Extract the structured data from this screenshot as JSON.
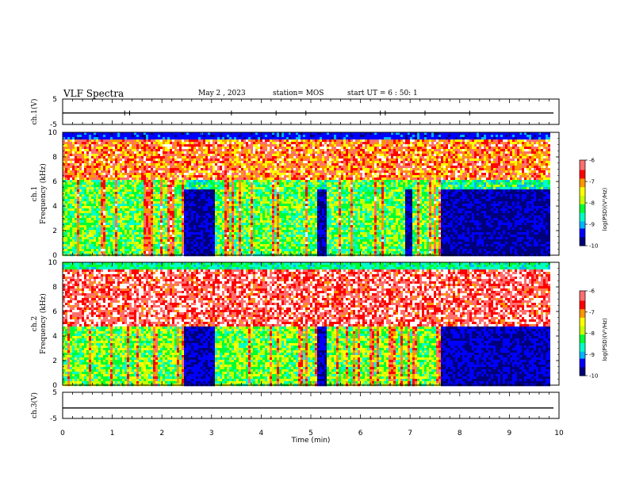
{
  "header": {
    "title": "VLF Spectra",
    "date": "May 2 , 2023",
    "station": "station= MOS",
    "start": "start UT = 6 : 50: 1"
  },
  "chart_data": [
    {
      "type": "line",
      "name": "ch1-voltage",
      "ylabel": "ch.1(V)",
      "ylim": [
        -5,
        5
      ],
      "yticks": [
        "5",
        "-5"
      ],
      "x": [
        0,
        10
      ],
      "y": [
        -0.5,
        -0.5
      ]
    },
    {
      "type": "heatmap",
      "name": "ch1-spectrogram",
      "ylabel": "ch.1\nFrequency (kHz)",
      "ylim": [
        0,
        10
      ],
      "yticks": [
        "0",
        "2",
        "4",
        "6",
        "8",
        "10"
      ],
      "xlim": [
        0,
        10
      ],
      "colorbar": {
        "label": "log(PSD)(V²/Hz)",
        "range": [
          -10,
          -6
        ],
        "ticks": [
          "-6",
          "-7",
          "-8",
          "-9",
          "-10"
        ]
      },
      "quiet_intervals_min": [
        [
          2.4,
          3.05
        ],
        [
          5.1,
          5.3
        ],
        [
          6.9,
          7.0
        ],
        [
          7.6,
          9.8
        ]
      ]
    },
    {
      "type": "heatmap",
      "name": "ch2-spectrogram",
      "ylabel": "ch.2\nFrequency (kHz)",
      "ylim": [
        0,
        10
      ],
      "yticks": [
        "0",
        "2",
        "4",
        "6",
        "8",
        "10"
      ],
      "xlim": [
        0,
        10
      ],
      "colorbar": {
        "label": "log(PSD)(V²/Hz)",
        "range": [
          -10,
          -6
        ],
        "ticks": [
          "-6",
          "-7",
          "-8",
          "-9",
          "-10"
        ]
      },
      "quiet_intervals_min": [
        [
          2.4,
          3.05
        ],
        [
          5.1,
          5.3
        ],
        [
          7.6,
          9.8
        ]
      ]
    },
    {
      "type": "line",
      "name": "ch3-voltage",
      "ylabel": "ch.3(V)",
      "ylim": [
        -5,
        5
      ],
      "yticks": [
        "5",
        "-5"
      ],
      "x": [
        0,
        10
      ],
      "y": [
        -1,
        -1
      ]
    }
  ],
  "xaxis": {
    "label": "Time (min)",
    "ticks": [
      "0",
      "1",
      "2",
      "3",
      "4",
      "5",
      "6",
      "7",
      "8",
      "9",
      "10"
    ],
    "range": [
      0,
      10
    ]
  },
  "colors": {
    "spectrum": [
      "#00007a",
      "#0000ff",
      "#00b4ff",
      "#00ffc8",
      "#00ff32",
      "#c8ff00",
      "#ffff00",
      "#ff9600",
      "#ff0000",
      "#ff6e6e",
      "#ffffff"
    ]
  }
}
